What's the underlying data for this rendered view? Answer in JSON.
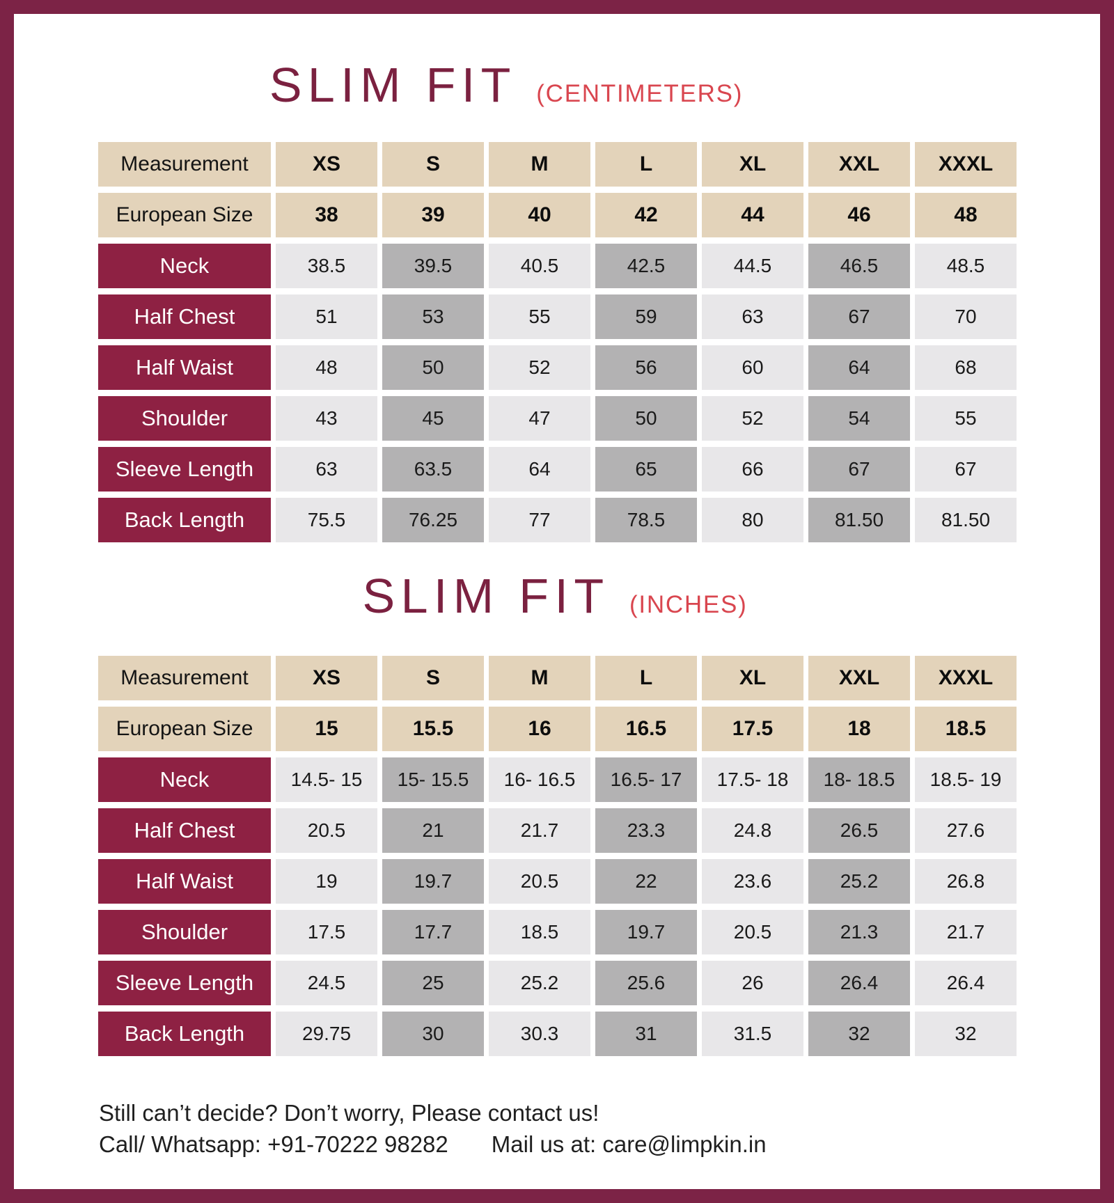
{
  "colors": {
    "border": "#7c2346",
    "title": "#7b2140",
    "unit_accent": "#d9464f",
    "header_bg": "#e3d3ba",
    "row_label_bg": "#8e2143",
    "cell_light": "#e8e7e9",
    "cell_dark": "#b3b2b3"
  },
  "tables": [
    {
      "title": "SLIM FIT",
      "unit": "(CENTIMETERS)",
      "corner_label": "Measurement",
      "size_headers": [
        "XS",
        "S",
        "M",
        "L",
        "XL",
        "XXL",
        "XXXL"
      ],
      "european_row": {
        "label": "European Size",
        "values": [
          "38",
          "39",
          "40",
          "42",
          "44",
          "46",
          "48"
        ]
      },
      "measurement_rows": [
        {
          "label": "Neck",
          "values": [
            "38.5",
            "39.5",
            "40.5",
            "42.5",
            "44.5",
            "46.5",
            "48.5"
          ]
        },
        {
          "label": "Half Chest",
          "values": [
            "51",
            "53",
            "55",
            "59",
            "63",
            "67",
            "70"
          ]
        },
        {
          "label": "Half Waist",
          "values": [
            "48",
            "50",
            "52",
            "56",
            "60",
            "64",
            "68"
          ]
        },
        {
          "label": "Shoulder",
          "values": [
            "43",
            "45",
            "47",
            "50",
            "52",
            "54",
            "55"
          ]
        },
        {
          "label": "Sleeve Length",
          "values": [
            "63",
            "63.5",
            "64",
            "65",
            "66",
            "67",
            "67"
          ]
        },
        {
          "label": "Back Length",
          "values": [
            "75.5",
            "76.25",
            "77",
            "78.5",
            "80",
            "81.50",
            "81.50"
          ]
        }
      ]
    },
    {
      "title": "SLIM FIT",
      "unit": "(INCHES)",
      "corner_label": "Measurement",
      "size_headers": [
        "XS",
        "S",
        "M",
        "L",
        "XL",
        "XXL",
        "XXXL"
      ],
      "european_row": {
        "label": "European Size",
        "values": [
          "15",
          "15.5",
          "16",
          "16.5",
          "17.5",
          "18",
          "18.5"
        ]
      },
      "measurement_rows": [
        {
          "label": "Neck",
          "values": [
            "14.5- 15",
            "15- 15.5",
            "16- 16.5",
            "16.5- 17",
            "17.5- 18",
            "18- 18.5",
            "18.5- 19"
          ]
        },
        {
          "label": "Half Chest",
          "values": [
            "20.5",
            "21",
            "21.7",
            "23.3",
            "24.8",
            "26.5",
            "27.6"
          ]
        },
        {
          "label": "Half Waist",
          "values": [
            "19",
            "19.7",
            "20.5",
            "22",
            "23.6",
            "25.2",
            "26.8"
          ]
        },
        {
          "label": "Shoulder",
          "values": [
            "17.5",
            "17.7",
            "18.5",
            "19.7",
            "20.5",
            "21.3",
            "21.7"
          ]
        },
        {
          "label": "Sleeve Length",
          "values": [
            "24.5",
            "25",
            "25.2",
            "25.6",
            "26",
            "26.4",
            "26.4"
          ]
        },
        {
          "label": "Back Length",
          "values": [
            "29.75",
            "30",
            "30.3",
            "31",
            "31.5",
            "32",
            "32"
          ]
        }
      ]
    }
  ],
  "footer": {
    "line1": "Still can’t decide? Don’t worry, Please contact us!",
    "phone": "Call/ Whatsapp: +91-70222 98282",
    "email": "Mail us at: care@limpkin.in"
  }
}
